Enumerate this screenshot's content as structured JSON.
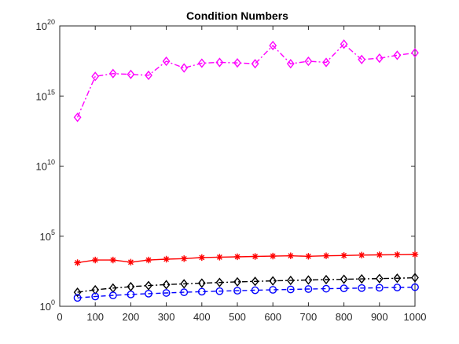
{
  "chart_data": {
    "type": "line",
    "title": "Condition Numbers",
    "xlabel": "",
    "ylabel": "",
    "xlim": [
      0,
      1000
    ],
    "ylim": [
      1,
      1e+20
    ],
    "yscale": "log",
    "grid": false,
    "legend": "none",
    "x_ticks": [
      0,
      100,
      200,
      300,
      400,
      500,
      600,
      700,
      800,
      900,
      1000
    ],
    "y_ticks": [
      {
        "base": "10",
        "exp": "0",
        "value": 1
      },
      {
        "base": "10",
        "exp": "5",
        "value": 100000
      },
      {
        "base": "10",
        "exp": "10",
        "value": 10000000000
      },
      {
        "base": "10",
        "exp": "15",
        "value": 1000000000000000.0
      },
      {
        "base": "10",
        "exp": "20",
        "value": 1e+20
      }
    ],
    "x": [
      50,
      100,
      150,
      200,
      250,
      300,
      350,
      400,
      450,
      500,
      550,
      600,
      650,
      700,
      750,
      800,
      850,
      900,
      950,
      1000
    ],
    "series": [
      {
        "color": "#ff00ff",
        "line": "dashdot",
        "marker": "diamond",
        "values": [
          30000000000000.0,
          2.5e+16,
          4e+16,
          3.5e+16,
          3e+16,
          3e+17,
          1e+17,
          2.2e+17,
          2.5e+17,
          2.3e+17,
          2e+17,
          4e+18,
          2e+17,
          3e+17,
          2.5e+17,
          5e+18,
          4e+17,
          5e+17,
          8e+17,
          1.2e+18
        ]
      },
      {
        "color": "#ff0000",
        "line": "solid",
        "marker": "asterisk",
        "values": [
          1300,
          2000,
          2000,
          1400,
          2000,
          2300,
          2500,
          3000,
          3200,
          3400,
          3600,
          3800,
          4000,
          3700,
          4000,
          4200,
          4500,
          4700,
          4800,
          5000
        ]
      },
      {
        "color": "#000000",
        "line": "dashdot",
        "marker": "diamond",
        "values": [
          10,
          15,
          20,
          25,
          30,
          35,
          40,
          45,
          50,
          55,
          60,
          65,
          70,
          75,
          80,
          85,
          90,
          95,
          100,
          110
        ]
      },
      {
        "color": "#0000ff",
        "line": "dashed",
        "marker": "circle",
        "values": [
          4,
          5,
          6,
          7,
          8,
          9,
          10,
          11,
          12,
          13,
          14,
          15,
          16,
          17,
          18,
          19,
          20,
          21,
          22,
          23
        ]
      }
    ]
  }
}
